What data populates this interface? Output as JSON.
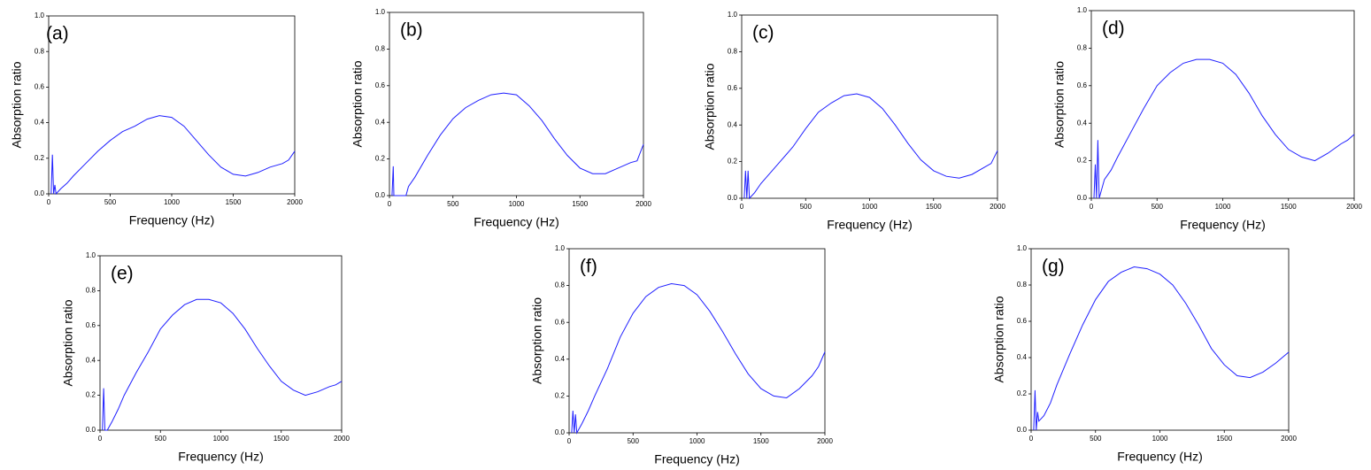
{
  "chart_data": [
    {
      "type": "line",
      "title": "(a)",
      "xlabel": "Frequency (Hz)",
      "ylabel": "Absorption ratio",
      "color": "#1f1fff",
      "xlim": [
        0,
        2000
      ],
      "ylim": [
        0,
        1
      ],
      "xticks": [
        0,
        500,
        1000,
        1500,
        2000
      ],
      "yticks": [
        {
          "value": 0,
          "label": "0.0"
        },
        0.2,
        0.4,
        0.6,
        0.8,
        {
          "value": 1,
          "label": "1.0"
        }
      ],
      "x": [
        20,
        30,
        40,
        50,
        60,
        100,
        150,
        200,
        300,
        400,
        500,
        600,
        700,
        800,
        900,
        1000,
        1100,
        1200,
        1300,
        1400,
        1500,
        1600,
        1700,
        1800,
        1900,
        1950,
        2000
      ],
      "values": [
        0.0,
        0.22,
        0.0,
        0.05,
        0.0,
        0.03,
        0.06,
        0.1,
        0.17,
        0.24,
        0.3,
        0.35,
        0.38,
        0.42,
        0.44,
        0.43,
        0.38,
        0.3,
        0.22,
        0.15,
        0.11,
        0.1,
        0.12,
        0.15,
        0.17,
        0.19,
        0.24
      ]
    },
    {
      "type": "line",
      "title": "(b)",
      "xlabel": "Frequency (Hz)",
      "ylabel": "Absorption ratio",
      "color": "#1f1fff",
      "xlim": [
        0,
        2000
      ],
      "ylim": [
        0,
        1
      ],
      "xticks": [
        0,
        500,
        1000,
        1500,
        2000
      ],
      "yticks": [
        {
          "value": 0,
          "label": "0.0"
        },
        0.2,
        0.4,
        0.6,
        0.8,
        {
          "value": 1,
          "label": "1.0"
        }
      ],
      "x": [
        20,
        30,
        35,
        40,
        130,
        150,
        200,
        300,
        400,
        500,
        600,
        700,
        800,
        900,
        1000,
        1100,
        1200,
        1300,
        1400,
        1500,
        1600,
        1700,
        1800,
        1900,
        1950,
        2000
      ],
      "values": [
        0.0,
        0.16,
        0.0,
        0.0,
        0.0,
        0.05,
        0.1,
        0.22,
        0.33,
        0.42,
        0.48,
        0.52,
        0.55,
        0.56,
        0.55,
        0.49,
        0.41,
        0.31,
        0.22,
        0.15,
        0.12,
        0.12,
        0.15,
        0.18,
        0.19,
        0.28
      ]
    },
    {
      "type": "line",
      "title": "(c)",
      "xlabel": "Frequency (Hz)",
      "ylabel": "Absorption ratio",
      "color": "#1f1fff",
      "xlim": [
        0,
        2000
      ],
      "ylim": [
        0,
        1
      ],
      "xticks": [
        0,
        500,
        1000,
        1500,
        2000
      ],
      "yticks": [
        {
          "value": 0,
          "label": "0.0"
        },
        0.2,
        0.4,
        0.6,
        0.8,
        {
          "value": 1,
          "label": "1.0"
        }
      ],
      "x": [
        20,
        30,
        40,
        50,
        60,
        100,
        150,
        200,
        300,
        400,
        500,
        600,
        700,
        800,
        900,
        1000,
        1100,
        1200,
        1300,
        1400,
        1500,
        1600,
        1700,
        1800,
        1900,
        1950,
        2000
      ],
      "values": [
        0.0,
        0.15,
        0.0,
        0.15,
        0.0,
        0.03,
        0.08,
        0.12,
        0.2,
        0.28,
        0.38,
        0.47,
        0.52,
        0.56,
        0.57,
        0.55,
        0.49,
        0.4,
        0.3,
        0.21,
        0.15,
        0.12,
        0.11,
        0.13,
        0.17,
        0.19,
        0.26
      ]
    },
    {
      "type": "line",
      "title": "(d)",
      "xlabel": "Frequency (Hz)",
      "ylabel": "Absorption ratio",
      "color": "#1f1fff",
      "xlim": [
        0,
        2000
      ],
      "ylim": [
        0,
        1
      ],
      "xticks": [
        0,
        500,
        1000,
        1500,
        2000
      ],
      "yticks": [
        {
          "value": 0,
          "label": "0.0"
        },
        0.2,
        0.4,
        0.6,
        0.8,
        {
          "value": 1,
          "label": "1.0"
        }
      ],
      "x": [
        20,
        30,
        40,
        50,
        60,
        100,
        150,
        200,
        300,
        400,
        500,
        600,
        700,
        800,
        900,
        1000,
        1100,
        1200,
        1300,
        1400,
        1500,
        1600,
        1700,
        1800,
        1900,
        1950,
        2000
      ],
      "values": [
        0.0,
        0.18,
        0.0,
        0.31,
        0.0,
        0.1,
        0.15,
        0.22,
        0.35,
        0.48,
        0.6,
        0.67,
        0.72,
        0.74,
        0.74,
        0.72,
        0.66,
        0.56,
        0.44,
        0.34,
        0.26,
        0.22,
        0.2,
        0.24,
        0.29,
        0.31,
        0.34
      ]
    },
    {
      "type": "line",
      "title": "(e)",
      "xlabel": "Frequency (Hz)",
      "ylabel": "Absorption ratio",
      "color": "#1f1fff",
      "xlim": [
        0,
        2000
      ],
      "ylim": [
        0,
        1
      ],
      "xticks": [
        0,
        500,
        1000,
        1500,
        2000
      ],
      "yticks": [
        {
          "value": 0,
          "label": "0.0"
        },
        0.2,
        0.4,
        0.6,
        0.8,
        {
          "value": 1,
          "label": "1.0"
        }
      ],
      "x": [
        20,
        30,
        40,
        50,
        60,
        100,
        150,
        200,
        300,
        400,
        500,
        600,
        700,
        800,
        900,
        1000,
        1100,
        1200,
        1300,
        1400,
        1500,
        1600,
        1700,
        1800,
        1900,
        1950,
        2000
      ],
      "values": [
        0.0,
        0.24,
        0.0,
        0.0,
        0.0,
        0.05,
        0.12,
        0.2,
        0.33,
        0.45,
        0.58,
        0.66,
        0.72,
        0.75,
        0.75,
        0.73,
        0.67,
        0.58,
        0.47,
        0.37,
        0.28,
        0.23,
        0.2,
        0.22,
        0.25,
        0.26,
        0.28
      ]
    },
    {
      "type": "line",
      "title": "(f)",
      "xlabel": "Frequency (Hz)",
      "ylabel": "Absorption ratio",
      "color": "#1f1fff",
      "xlim": [
        0,
        2000
      ],
      "ylim": [
        0,
        1
      ],
      "xticks": [
        0,
        500,
        1000,
        1500,
        2000
      ],
      "yticks": [
        {
          "value": 0,
          "label": "0.0"
        },
        0.2,
        0.4,
        0.6,
        0.8,
        {
          "value": 1,
          "label": "1.0"
        }
      ],
      "x": [
        20,
        30,
        40,
        50,
        60,
        100,
        150,
        200,
        300,
        400,
        500,
        600,
        700,
        800,
        900,
        1000,
        1100,
        1200,
        1300,
        1400,
        1500,
        1600,
        1700,
        1800,
        1900,
        1950,
        2000
      ],
      "values": [
        0.0,
        0.12,
        0.0,
        0.1,
        0.0,
        0.05,
        0.12,
        0.2,
        0.35,
        0.52,
        0.65,
        0.74,
        0.79,
        0.81,
        0.8,
        0.75,
        0.66,
        0.55,
        0.43,
        0.32,
        0.24,
        0.2,
        0.19,
        0.24,
        0.31,
        0.36,
        0.44
      ]
    },
    {
      "type": "line",
      "title": "(g)",
      "xlabel": "Frequency (Hz)",
      "ylabel": "Absorption ratio",
      "color": "#1f1fff",
      "xlim": [
        0,
        2000
      ],
      "ylim": [
        0,
        1
      ],
      "xticks": [
        0,
        500,
        1000,
        1500,
        2000
      ],
      "yticks": [
        {
          "value": 0,
          "label": "0.0"
        },
        0.2,
        0.4,
        0.6,
        0.8,
        {
          "value": 1,
          "label": "1.0"
        }
      ],
      "x": [
        20,
        30,
        40,
        50,
        60,
        100,
        150,
        200,
        300,
        400,
        500,
        600,
        700,
        800,
        900,
        1000,
        1100,
        1200,
        1300,
        1400,
        1500,
        1600,
        1700,
        1800,
        1900,
        1950,
        2000
      ],
      "values": [
        0.0,
        0.22,
        0.0,
        0.1,
        0.05,
        0.08,
        0.15,
        0.25,
        0.42,
        0.58,
        0.72,
        0.82,
        0.87,
        0.9,
        0.89,
        0.86,
        0.8,
        0.7,
        0.58,
        0.45,
        0.36,
        0.3,
        0.29,
        0.32,
        0.37,
        0.4,
        0.43
      ]
    }
  ]
}
